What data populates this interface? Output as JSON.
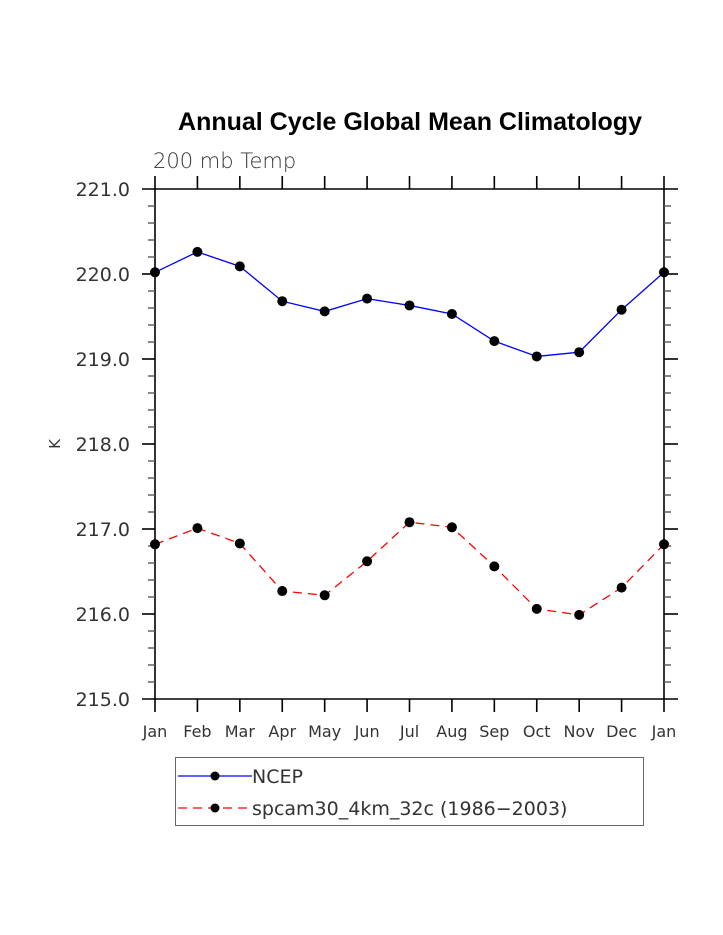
{
  "chart_data": {
    "type": "line",
    "title": "Annual Cycle Global Mean Climatology",
    "subtitle": "200 mb Temp",
    "xlabel": "",
    "ylabel": "K",
    "categories": [
      "Jan",
      "Feb",
      "Mar",
      "Apr",
      "May",
      "Jun",
      "Jul",
      "Aug",
      "Sep",
      "Oct",
      "Nov",
      "Dec",
      "Jan"
    ],
    "ylim": [
      215.0,
      221.0
    ],
    "y_major_ticks": [
      215.0,
      216.0,
      217.0,
      218.0,
      219.0,
      220.0,
      221.0
    ],
    "y_tick_labels": [
      "215.0",
      "216.0",
      "217.0",
      "218.0",
      "219.0",
      "220.0",
      "221.0"
    ],
    "y_minor_step": 0.2,
    "grid": false,
    "legend_position": "bottom",
    "series": [
      {
        "name": "NCEP",
        "color": "#0000ff",
        "line_style": "solid",
        "marker": "filled-circle",
        "marker_color": "#000000",
        "values": [
          220.02,
          220.26,
          220.09,
          219.68,
          219.56,
          219.71,
          219.63,
          219.53,
          219.21,
          219.03,
          219.08,
          219.58,
          220.02
        ]
      },
      {
        "name": "spcam30_4km_32c (1986−2003)",
        "color": "#ff0000",
        "line_style": "dashed",
        "marker": "filled-circle",
        "marker_color": "#000000",
        "values": [
          216.82,
          217.01,
          216.83,
          216.27,
          216.22,
          216.62,
          217.08,
          217.02,
          216.56,
          216.06,
          215.99,
          216.31,
          216.82
        ]
      }
    ]
  }
}
